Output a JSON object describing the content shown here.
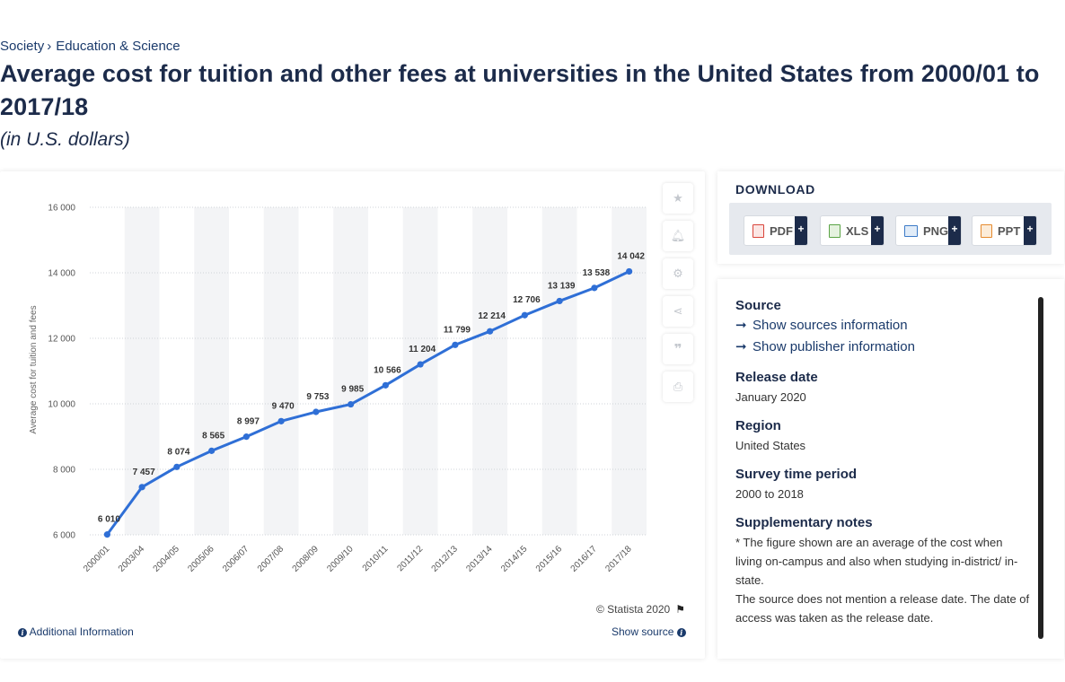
{
  "breadcrumb": {
    "items": [
      "Society",
      "Education & Science"
    ],
    "separator": "›"
  },
  "page_title": "Average cost for tuition and other fees at universities in the United States from 2000/01 to 2017/18",
  "subtitle": "(in U.S. dollars)",
  "chart_data": {
    "type": "line",
    "ylabel": "Average cost for tuition and fees",
    "xlabel": "",
    "ylim": [
      6000,
      16000
    ],
    "yticks": [
      6000,
      8000,
      10000,
      12000,
      14000,
      16000
    ],
    "ytick_labels": [
      "6 000",
      "8 000",
      "10 000",
      "12 000",
      "14 000",
      "16 000"
    ],
    "categories": [
      "2000/01",
      "2003/04",
      "2004/05",
      "2005/06",
      "2006/07",
      "2007/08",
      "2008/09",
      "2009/10",
      "2010/11",
      "2011/12",
      "2012/13",
      "2013/14",
      "2014/15",
      "2015/16",
      "2016/17",
      "2017/18"
    ],
    "values": [
      6010,
      7457,
      8074,
      8565,
      8997,
      9470,
      9753,
      9985,
      10566,
      11204,
      11799,
      12214,
      12706,
      13139,
      13538,
      14042
    ],
    "data_labels": [
      "6 010",
      "7 457",
      "8 074",
      "8 565",
      "8 997",
      "9 470",
      "9 753",
      "9 985",
      "10 566",
      "11 204",
      "11 799",
      "12 214",
      "12 706",
      "13 139",
      "13 538",
      "14 042"
    ],
    "grid": true,
    "line_color": "#2f6fd6",
    "band_color": "#f3f4f6"
  },
  "chart_footer": {
    "copyright": "© Statista 2020",
    "additional_info": "Additional Information",
    "show_source": "Show source"
  },
  "tools": [
    "star-icon",
    "bell-icon",
    "gear-icon",
    "share-icon",
    "quote-icon",
    "print-icon"
  ],
  "download": {
    "title": "DOWNLOAD",
    "buttons": [
      {
        "label": "PDF",
        "icon": "pdf-file-icon",
        "color": "#d9443a"
      },
      {
        "label": "XLS",
        "icon": "xls-file-icon",
        "color": "#5aa344"
      },
      {
        "label": "PNG",
        "icon": "png-file-icon",
        "color": "#3c7ac7"
      },
      {
        "label": "PPT",
        "icon": "ppt-file-icon",
        "color": "#e58a2e"
      }
    ],
    "plus": "+"
  },
  "info": {
    "source_heading": "Source",
    "show_sources": "Show sources information",
    "show_publisher": "Show publisher information",
    "release_heading": "Release date",
    "release_value": "January 2020",
    "region_heading": "Region",
    "region_value": "United States",
    "survey_heading": "Survey time period",
    "survey_value": "2000 to 2018",
    "notes_heading": "Supplementary notes",
    "notes_line1": "* The figure shown are an average of the cost when living on-campus and also when studying in-district/ in-state.",
    "notes_line2": "The source does not mention a release date. The date of access was taken as the release date."
  }
}
